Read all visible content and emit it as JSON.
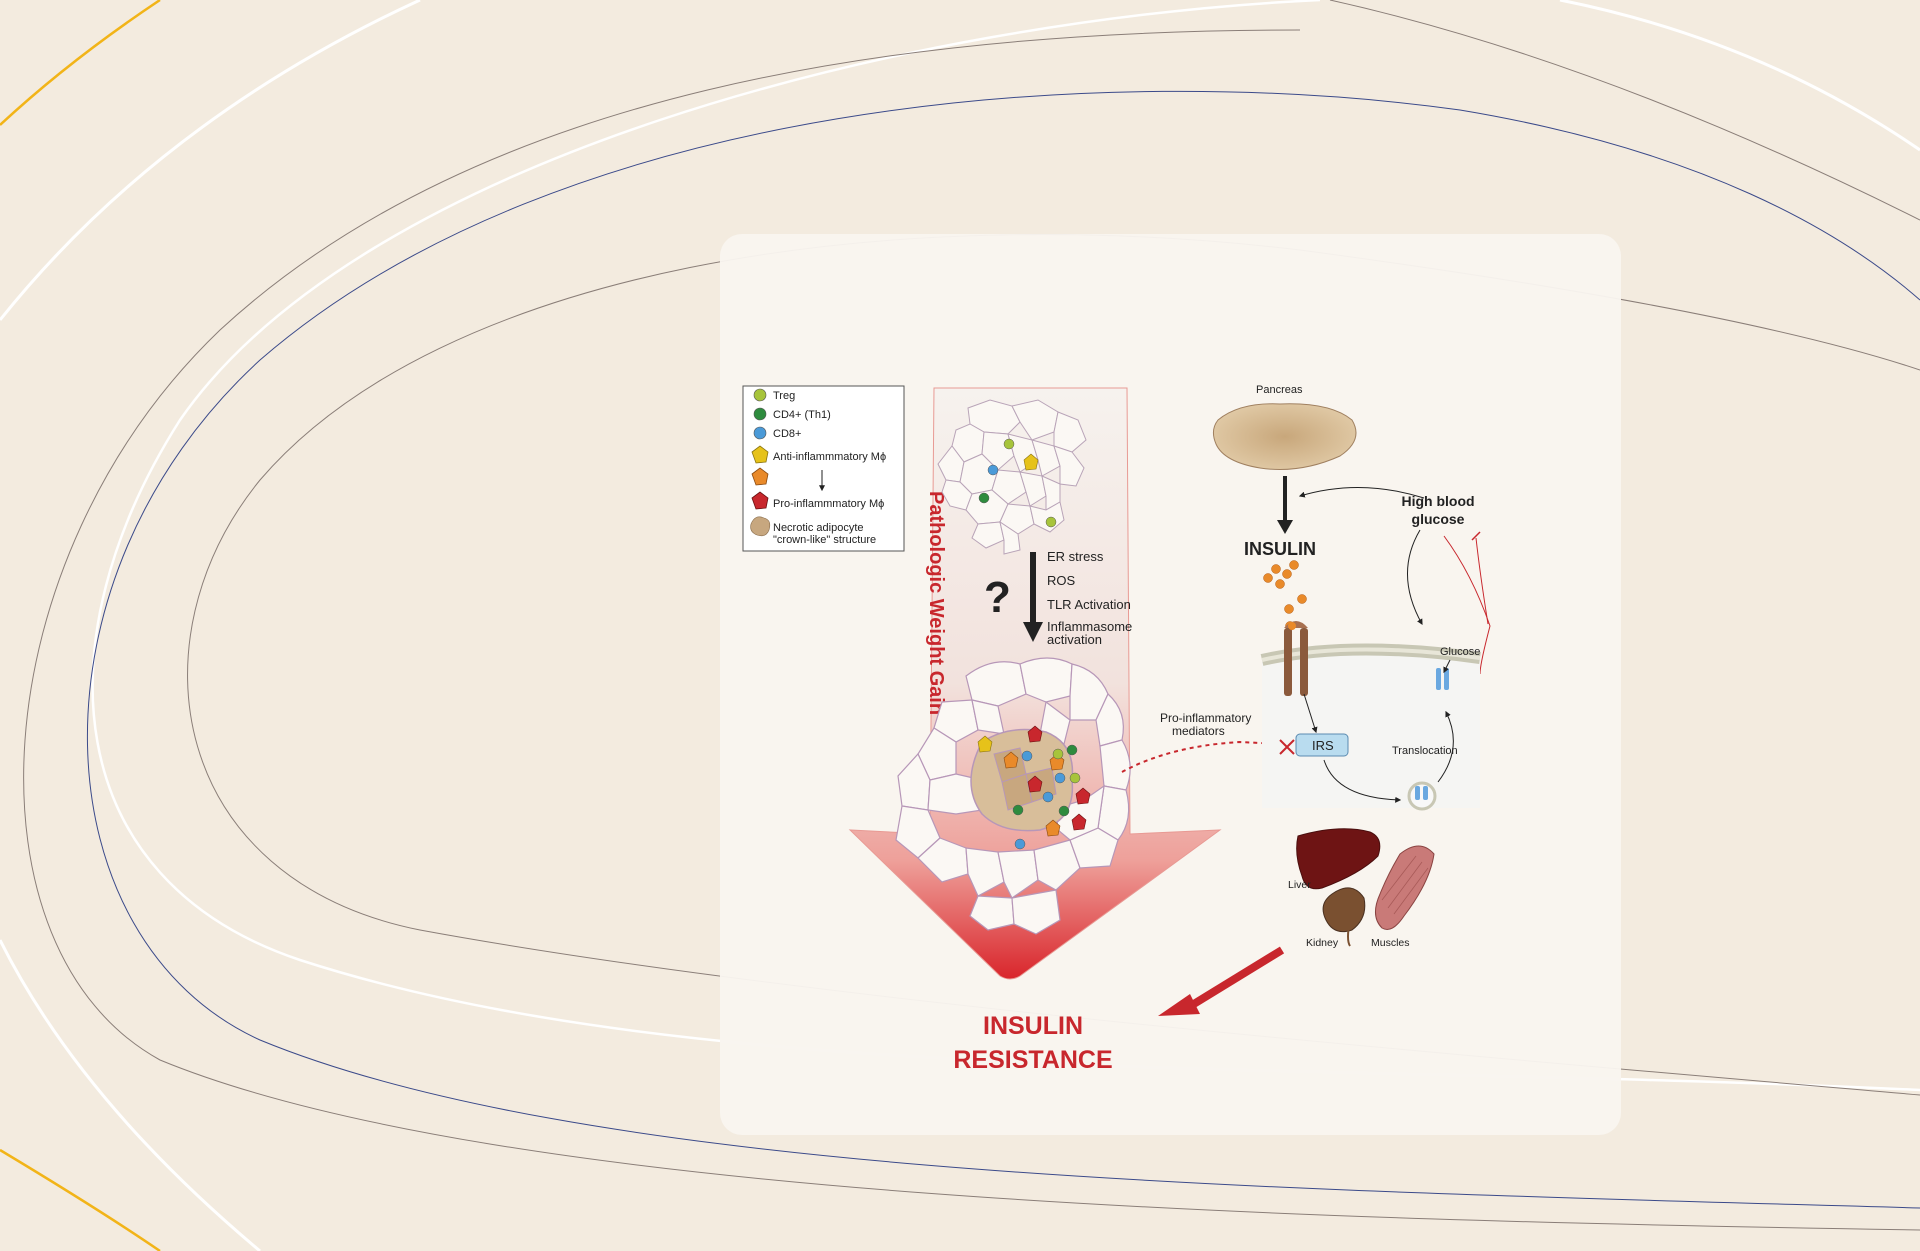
{
  "legend": {
    "items": [
      {
        "label": "Treg",
        "color": "#a7c43b"
      },
      {
        "label": "CD4+ (Th1)",
        "color": "#2e8b3e"
      },
      {
        "label": "CD8+",
        "color": "#4a9ad8"
      },
      {
        "label": "Anti-inflammmatory Mϕ",
        "color": "#e6c21a"
      },
      {
        "label": "",
        "color": "#e98a2a"
      },
      {
        "label": "Pro-inflammmatory Mϕ",
        "color": "#c8272d"
      },
      {
        "label": "Necrotic adipocyte \"crown-like\" structure",
        "color": "#c7a77f"
      }
    ],
    "necrotic_line1": "Necrotic adipocyte",
    "necrotic_line2": "\"crown-like\" structure"
  },
  "arrow_label": "Pathologic Weight Gain",
  "question_mark": "?",
  "mechanisms": [
    "ER stress",
    "ROS",
    "TLR Activation",
    "Inflammasome",
    "activation"
  ],
  "pro_inflammatory": [
    "Pro-inflammatory",
    "mediators"
  ],
  "pancreas_label": "Pancreas",
  "insulin_label": "INSULIN",
  "high_blood_glucose": [
    "High blood",
    "glucose"
  ],
  "glucose_label": "Glucose",
  "irs_label": "IRS",
  "translocation_label": "Translocation",
  "organs": {
    "liver": "Liver",
    "kidney": "Kidney",
    "muscles": "Muscles"
  },
  "insulin_resistance": [
    "INSULIN",
    "RESISTANCE"
  ],
  "colors": {
    "background": "#f3ebdf",
    "accent_red": "#c8272d",
    "irs_fill": "#b9dcef"
  }
}
